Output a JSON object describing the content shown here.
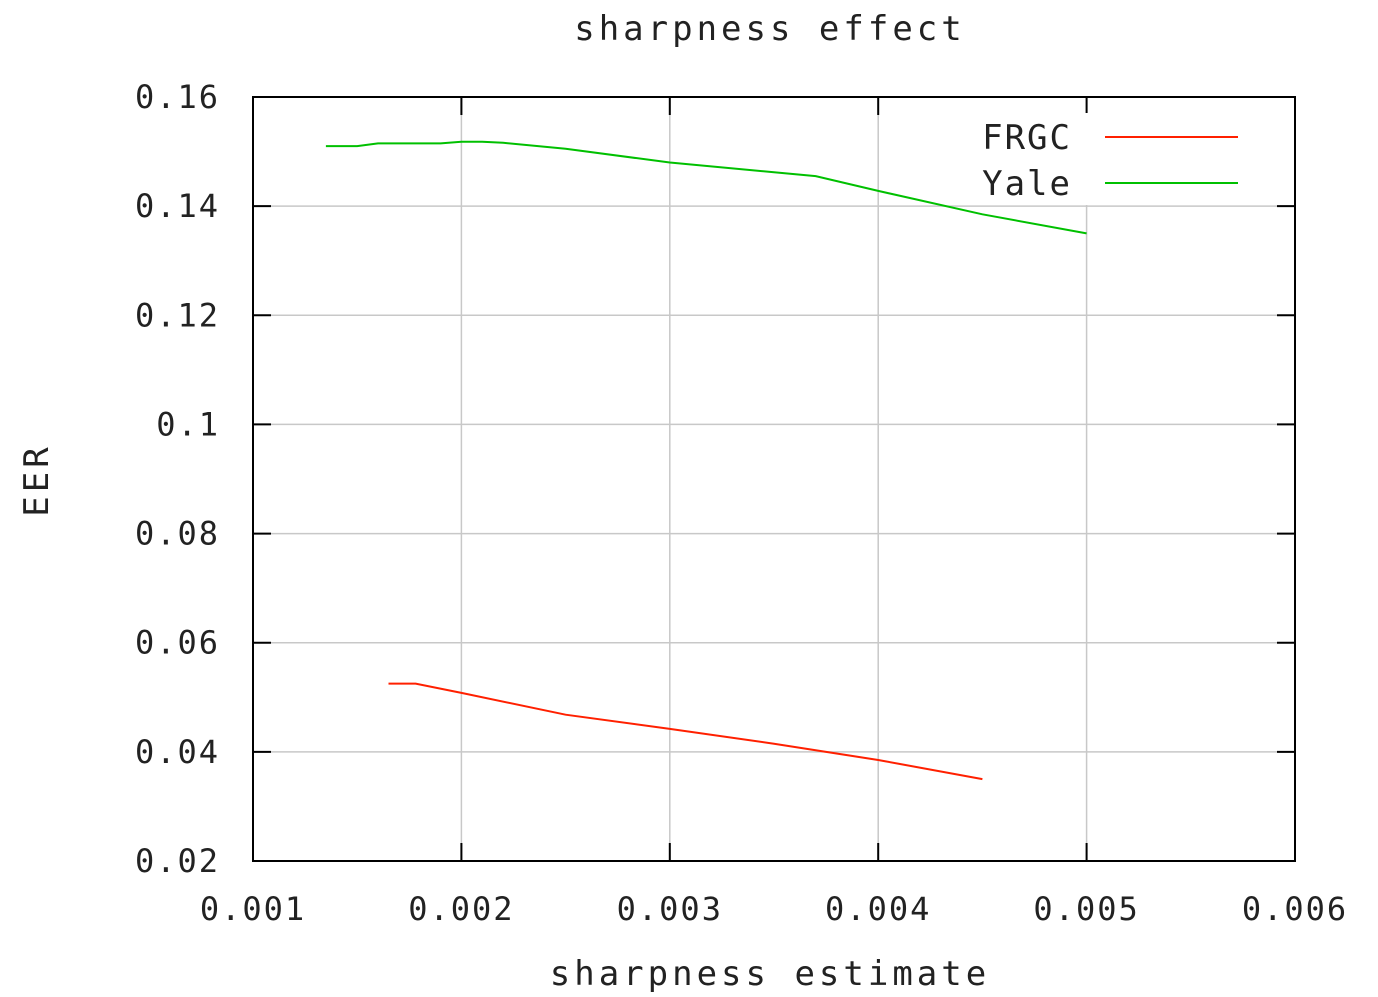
{
  "chart_data": {
    "type": "line",
    "title": "sharpness effect",
    "xlabel": "sharpness estimate",
    "ylabel": "EER",
    "xlim": [
      0.001,
      0.006
    ],
    "ylim": [
      0.02,
      0.16
    ],
    "xticks": [
      0.001,
      0.002,
      0.003,
      0.004,
      0.005,
      0.006
    ],
    "xtick_labels": [
      "0.001",
      "0.002",
      "0.003",
      "0.004",
      "0.005",
      "0.006"
    ],
    "yticks": [
      0.02,
      0.04,
      0.06,
      0.08,
      0.1,
      0.12,
      0.14,
      0.16
    ],
    "ytick_labels": [
      "0.02",
      "0.04",
      "0.06",
      "0.08",
      "0.1",
      "0.12",
      "0.14",
      "0.16"
    ],
    "grid": true,
    "legend_position": "top-right",
    "series": [
      {
        "name": "FRGC",
        "color": "#ff2000",
        "x": [
          0.00165,
          0.00178,
          0.002,
          0.0025,
          0.003,
          0.0035,
          0.004,
          0.0045
        ],
        "y": [
          0.0525,
          0.0525,
          0.0508,
          0.0468,
          0.0442,
          0.0415,
          0.0385,
          0.035
        ]
      },
      {
        "name": "Yale",
        "color": "#00c000",
        "x": [
          0.00135,
          0.0015,
          0.0016,
          0.0019,
          0.002,
          0.0021,
          0.0022,
          0.0025,
          0.003,
          0.0035,
          0.0037,
          0.004,
          0.0045,
          0.005
        ],
        "y": [
          0.151,
          0.151,
          0.1515,
          0.1515,
          0.1518,
          0.1518,
          0.1516,
          0.1505,
          0.148,
          0.1462,
          0.1455,
          0.1428,
          0.1385,
          0.135
        ]
      }
    ]
  }
}
